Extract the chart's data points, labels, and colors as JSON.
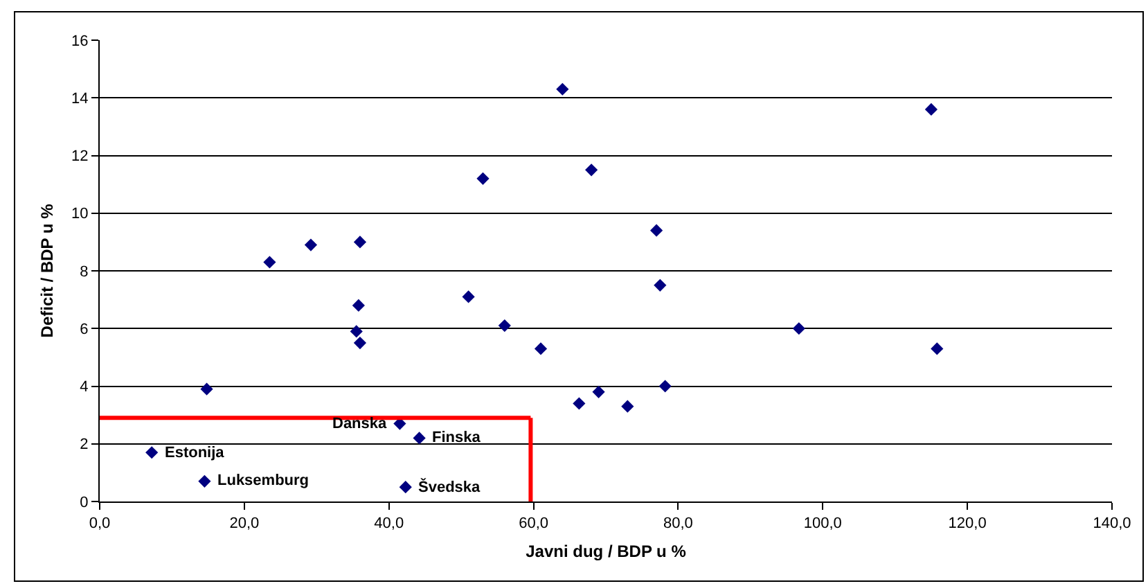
{
  "chart_data": {
    "type": "scatter",
    "xlabel": "Javni dug / BDP u %",
    "ylabel": "Deficit / BDP u %",
    "x": [
      14.8,
      7.2,
      14.5,
      23.5,
      29.2,
      36.0,
      35.8,
      35.5,
      36.0,
      41.5,
      44.2,
      42.3,
      51.0,
      53.0,
      56.0,
      61.0,
      64.0,
      66.3,
      68.0,
      69.0,
      73.0,
      77.0,
      77.5,
      78.2,
      96.7,
      115.0,
      115.8
    ],
    "values": [
      3.9,
      1.7,
      0.7,
      8.3,
      8.9,
      9.0,
      6.8,
      5.9,
      5.5,
      2.7,
      2.2,
      0.5,
      7.1,
      11.2,
      6.1,
      5.3,
      14.3,
      3.4,
      11.5,
      3.8,
      3.3,
      9.4,
      7.5,
      4.0,
      6.0,
      13.6,
      5.3
    ],
    "color": "#000080",
    "marker": "diamond",
    "xlim": [
      0,
      140
    ],
    "xticks": [
      {
        "value": 0,
        "label": "0,0"
      },
      {
        "value": 20,
        "label": "20,0"
      },
      {
        "value": 40,
        "label": "40,0"
      },
      {
        "value": 60,
        "label": "60,0"
      },
      {
        "value": 80,
        "label": "80,0"
      },
      {
        "value": 100,
        "label": "100,0"
      },
      {
        "value": 120,
        "label": "120,0"
      },
      {
        "value": 140,
        "label": "140,0"
      }
    ],
    "ylim": [
      0,
      16
    ],
    "yticks": [
      0,
      2,
      4,
      6,
      8,
      10,
      12,
      14,
      16
    ],
    "grid": "y",
    "ref_lines": [
      {
        "axis": "y",
        "value": 2.9,
        "color": "#ff0000"
      },
      {
        "axis": "x",
        "value": 59.6,
        "color": "#ff0000"
      }
    ],
    "annotations": [
      {
        "text": "Estonija",
        "x": 7.2,
        "y": 1.7
      },
      {
        "text": "Luksemburg",
        "x": 14.5,
        "y": 0.7
      },
      {
        "text": "Danska",
        "x": 41.5,
        "y": 2.7
      },
      {
        "text": "Finska",
        "x": 44.2,
        "y": 2.2
      },
      {
        "text": "Švedska",
        "x": 42.3,
        "y": 0.5
      }
    ]
  }
}
